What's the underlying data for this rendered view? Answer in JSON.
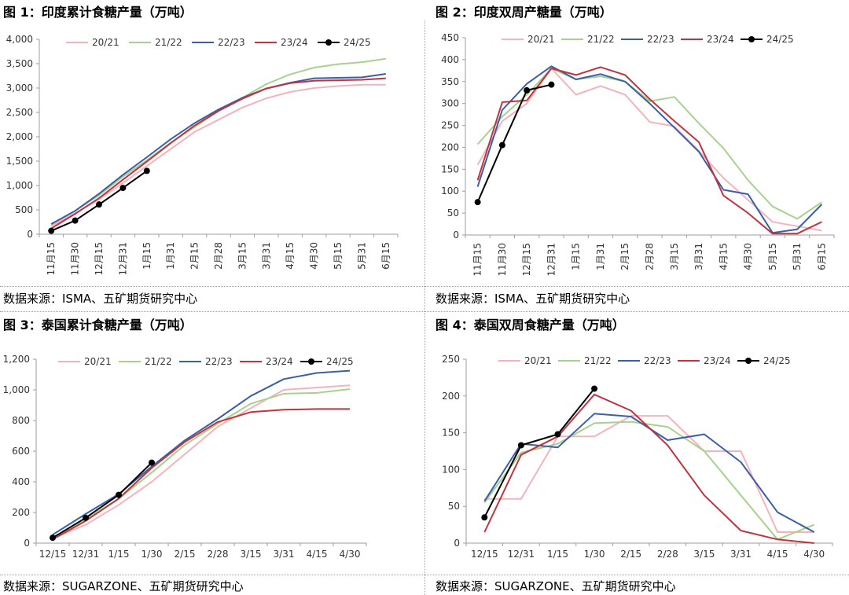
{
  "panels": [
    {
      "title": "图 1：印度累计食糖产量（万吨）",
      "source": "数据来源：ISMA、五矿期货研究中心"
    },
    {
      "title": "图 2：印度双周产糖量（万吨）",
      "source": "数据来源：ISMA、五矿期货研究中心"
    },
    {
      "title": "图 3：泰国累计食糖产量（万吨）",
      "source": "数据来源：SUGARZONE、五矿期货研究中心"
    },
    {
      "title": "图 4：泰国双周食糖产量（万吨）",
      "source": "数据来源：SUGARZONE、五矿期货研究中心"
    }
  ],
  "chart_data": [
    {
      "type": "line",
      "title": "图 1：印度累计食糖产量（万吨）",
      "categories": [
        "11月15",
        "11月30",
        "12月15",
        "12月31",
        "1月15",
        "1月31",
        "2月15",
        "2月28",
        "3月15",
        "3月31",
        "4月15",
        "4月30",
        "5月15",
        "5月31",
        "6月15"
      ],
      "ylim": [
        0,
        4000
      ],
      "yticks": [
        0,
        500,
        1000,
        1500,
        2000,
        2500,
        3000,
        3500,
        4000
      ],
      "ytick_labels": [
        "0",
        "500",
        "1,000",
        "1,500",
        "2,000",
        "2,500",
        "3,000",
        "3,500",
        "4,000"
      ],
      "legend": "top",
      "grid": false,
      "series": [
        {
          "name": "20/21",
          "color": "#f4b3bb",
          "values": [
            170,
            430,
            720,
            1050,
            1400,
            1750,
            2100,
            2350,
            2600,
            2790,
            2920,
            3000,
            3040,
            3070,
            3070
          ]
        },
        {
          "name": "21/22",
          "color": "#a9d18e",
          "values": [
            200,
            480,
            800,
            1180,
            1520,
            1880,
            2200,
            2530,
            2800,
            3080,
            3280,
            3420,
            3490,
            3530,
            3600
          ]
        },
        {
          "name": "22/23",
          "color": "#3a5ea8",
          "values": [
            210,
            480,
            830,
            1220,
            1580,
            1950,
            2280,
            2560,
            2800,
            2990,
            3110,
            3200,
            3210,
            3220,
            3290
          ]
        },
        {
          "name": "23/24",
          "color": "#c0343f",
          "values": [
            120,
            420,
            740,
            1120,
            1490,
            1870,
            2230,
            2530,
            2780,
            2990,
            3100,
            3150,
            3160,
            3170,
            3200
          ]
        },
        {
          "name": "24/25",
          "color": "#000000",
          "marker": true,
          "values": [
            70,
            280,
            610,
            950,
            1300,
            null,
            null,
            null,
            null,
            null,
            null,
            null,
            null,
            null,
            null
          ]
        }
      ]
    },
    {
      "type": "line",
      "title": "图 2：印度双周产糖量（万吨）",
      "categories": [
        "11月15",
        "11月30",
        "12月15",
        "12月31",
        "1月15",
        "1月31",
        "2月15",
        "2月28",
        "3月15",
        "3月31",
        "4月15",
        "4月30",
        "5月15",
        "5月31",
        "6月15"
      ],
      "ylim": [
        0,
        450
      ],
      "yticks": [
        0,
        50,
        100,
        150,
        200,
        250,
        300,
        350,
        400,
        450
      ],
      "ytick_labels": [
        "0",
        "50",
        "100",
        "150",
        "200",
        "250",
        "300",
        "350",
        "400",
        "450"
      ],
      "legend": "top",
      "grid": false,
      "series": [
        {
          "name": "20/21",
          "color": "#f4b3bb",
          "values": [
            160,
            260,
            300,
            380,
            320,
            340,
            320,
            258,
            248,
            192,
            130,
            80,
            30,
            20,
            10
          ]
        },
        {
          "name": "21/22",
          "color": "#a9d18e",
          "values": [
            207,
            270,
            320,
            380,
            355,
            362,
            350,
            305,
            315,
            255,
            198,
            125,
            65,
            37,
            75
          ]
        },
        {
          "name": "22/23",
          "color": "#3a5ea8",
          "values": [
            110,
            285,
            345,
            385,
            355,
            367,
            350,
            300,
            245,
            190,
            103,
            93,
            5,
            13,
            70
          ]
        },
        {
          "name": "23/24",
          "color": "#c0343f",
          "values": [
            125,
            303,
            307,
            380,
            365,
            383,
            365,
            310,
            260,
            212,
            90,
            50,
            3,
            3,
            30
          ]
        },
        {
          "name": "24/25",
          "color": "#000000",
          "marker": true,
          "values": [
            75,
            205,
            330,
            343,
            null,
            null,
            null,
            null,
            null,
            null,
            null,
            null,
            null,
            null,
            null
          ]
        }
      ]
    },
    {
      "type": "line",
      "title": "图 3：泰国累计食糖产量（万吨）",
      "categories": [
        "12/15",
        "12/31",
        "1/15",
        "1/30",
        "2/15",
        "2/28",
        "3/15",
        "3/31",
        "4/15",
        "4/30"
      ],
      "ylim": [
        0,
        1200
      ],
      "yticks": [
        0,
        200,
        400,
        600,
        800,
        1000,
        1200
      ],
      "ytick_labels": [
        "0",
        "200",
        "400",
        "600",
        "800",
        "1,000",
        "1,200"
      ],
      "legend": "top",
      "grid": false,
      "series": [
        {
          "name": "20/21",
          "color": "#f4b3bb",
          "values": [
            30,
            120,
            250,
            400,
            580,
            760,
            880,
            1000,
            1015,
            1030
          ]
        },
        {
          "name": "21/22",
          "color": "#a9d18e",
          "values": [
            35,
            155,
            290,
            460,
            640,
            780,
            910,
            975,
            980,
            1005
          ]
        },
        {
          "name": "22/23",
          "color": "#3a5ea8",
          "values": [
            55,
            190,
            320,
            500,
            670,
            810,
            960,
            1070,
            1110,
            1125
          ]
        },
        {
          "name": "23/24",
          "color": "#c0343f",
          "values": [
            25,
            145,
            290,
            490,
            660,
            790,
            855,
            870,
            875,
            875
          ]
        },
        {
          "name": "24/25",
          "color": "#000000",
          "marker": true,
          "values": [
            35,
            165,
            315,
            525,
            null,
            null,
            null,
            null,
            null,
            null
          ]
        }
      ]
    },
    {
      "type": "line",
      "title": "图 4：泰国双周食糖产量（万吨）",
      "categories": [
        "12/15",
        "12/31",
        "1/15",
        "1/30",
        "2/15",
        "2/28",
        "3/15",
        "3/31",
        "4/15",
        "4/30"
      ],
      "ylim": [
        0,
        250
      ],
      "yticks": [
        0,
        50,
        100,
        150,
        200,
        250
      ],
      "ytick_labels": [
        "0",
        "50",
        "100",
        "150",
        "200",
        "250"
      ],
      "legend": "top",
      "grid": false,
      "series": [
        {
          "name": "20/21",
          "color": "#f4b3bb",
          "values": [
            60,
            60,
            145,
            145,
            173,
            173,
            125,
            125,
            15,
            15
          ]
        },
        {
          "name": "21/22",
          "color": "#a9d18e",
          "values": [
            55,
            123,
            135,
            163,
            165,
            158,
            125,
            65,
            5,
            25
          ]
        },
        {
          "name": "22/23",
          "color": "#3a5ea8",
          "values": [
            57,
            135,
            130,
            176,
            172,
            140,
            148,
            110,
            42,
            15
          ]
        },
        {
          "name": "23/24",
          "color": "#c0343f",
          "values": [
            15,
            120,
            145,
            202,
            180,
            133,
            65,
            17,
            5,
            0
          ]
        },
        {
          "name": "24/25",
          "color": "#000000",
          "marker": true,
          "values": [
            35,
            133,
            148,
            210,
            null,
            null,
            null,
            null,
            null,
            null
          ]
        }
      ]
    }
  ]
}
